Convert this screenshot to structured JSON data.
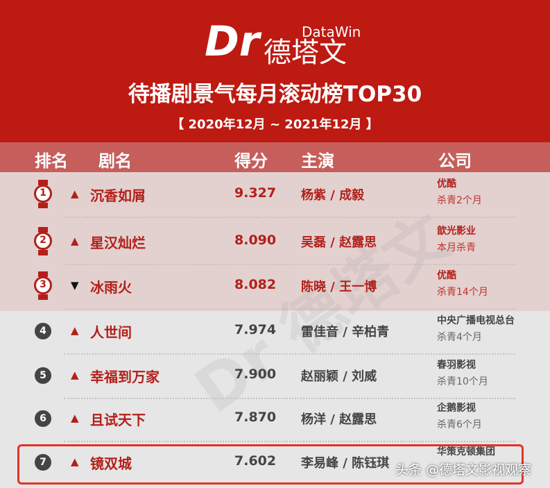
{
  "brand": {
    "mark": "Dr",
    "en": "DataWin",
    "cn": "德塔文"
  },
  "title": "待播剧景气每月滚动榜TOP30",
  "period": "【  2020年12月 ~ 2021年12月  】",
  "columns": {
    "rank": "排名",
    "name": "剧名",
    "score": "得分",
    "cast": "主演",
    "company": "公司"
  },
  "rows": [
    {
      "rank": "1",
      "trend": "up",
      "name": "沉香如屑",
      "score": "9.327",
      "cast": "杨紫 / 成毅",
      "company": "优酷",
      "status": "杀青2个月"
    },
    {
      "rank": "2",
      "trend": "up",
      "name": "星汉灿烂",
      "score": "8.090",
      "cast": "吴磊 / 赵露思",
      "company": "歆光影业",
      "status": "本月杀青"
    },
    {
      "rank": "3",
      "trend": "down",
      "name": "冰雨火",
      "score": "8.082",
      "cast": "陈晓 / 王一博",
      "company": "优酷",
      "status": "杀青14个月"
    },
    {
      "rank": "4",
      "trend": "up",
      "name": "人世间",
      "score": "7.974",
      "cast": "雷佳音 / 辛柏青",
      "company": "中央广播电视总台",
      "status": "杀青4个月"
    },
    {
      "rank": "5",
      "trend": "up",
      "name": "幸福到万家",
      "score": "7.900",
      "cast": "赵丽颖 / 刘威",
      "company": "春羽影视",
      "status": "杀青10个月"
    },
    {
      "rank": "6",
      "trend": "up",
      "name": "且试天下",
      "score": "7.870",
      "cast": "杨洋 / 赵露思",
      "company": "企鹅影视",
      "status": "杀青6个月"
    },
    {
      "rank": "7",
      "trend": "up",
      "name": "镜双城",
      "score": "7.602",
      "cast": "李易峰 / 陈钰琪",
      "company": "华策克顿集团",
      "status": ""
    }
  ],
  "arrows": {
    "up": "▲",
    "down": "▼"
  },
  "watermark": "头条 @德塔文影视观察",
  "colors": {
    "header": "#bd1a12",
    "accent": "#b3201a",
    "highlight": "#e3322a"
  }
}
